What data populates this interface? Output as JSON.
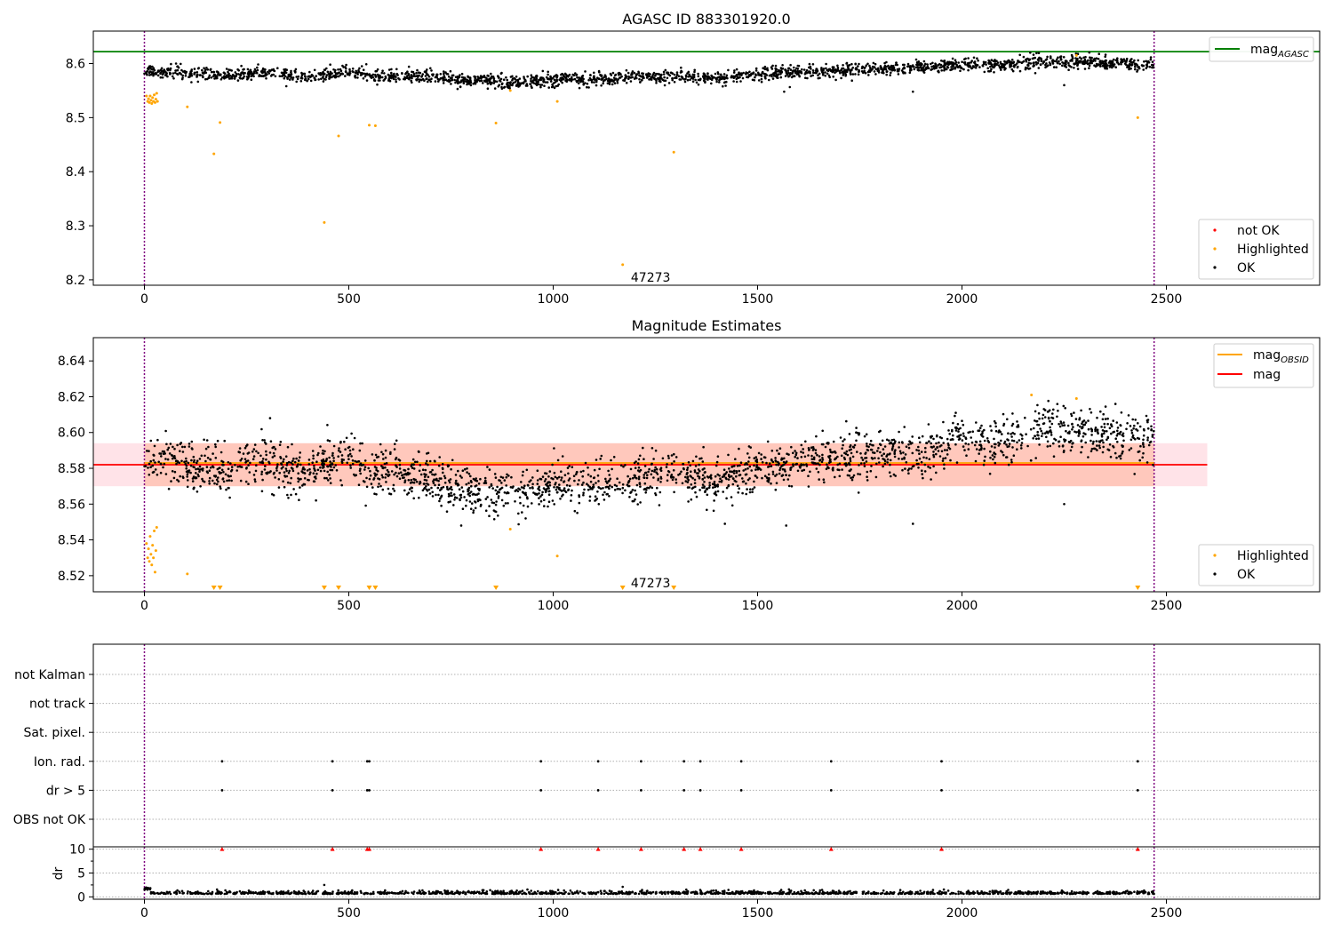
{
  "chart_data": [
    {
      "type": "scatter",
      "title": "AGASC ID 883301920.0",
      "xlim": [
        -125,
        2875
      ],
      "ylim": [
        8.19,
        8.66
      ],
      "xticks": [
        "0",
        "500",
        "1000",
        "1500",
        "2000",
        "2500"
      ],
      "xtick_values": [
        0,
        500,
        1000,
        1500,
        2000,
        2500
      ],
      "yticks": [
        "8.2",
        "8.3",
        "8.4",
        "8.5",
        "8.6"
      ],
      "ytick_values": [
        8.2,
        8.3,
        8.4,
        8.5,
        8.6
      ],
      "vlines": [
        0,
        2470
      ],
      "hline": {
        "label": "mag",
        "sub": "AGASC",
        "value": 8.622,
        "color": "#008000"
      },
      "legend_top": [
        {
          "label": "mag",
          "sub": "AGASC",
          "color": "#008000",
          "kind": "line"
        }
      ],
      "legend_bottom": [
        {
          "label": "not OK",
          "color": "#ff0000",
          "kind": "dot"
        },
        {
          "label": "Highlighted",
          "color": "#ffa500",
          "kind": "dot"
        },
        {
          "label": "OK",
          "color": "#000000",
          "kind": "dot"
        }
      ],
      "annotation": {
        "text": "47273",
        "x": 1190,
        "y": 8.205
      },
      "ok_trend": [
        [
          0,
          8.585
        ],
        [
          100,
          8.582
        ],
        [
          200,
          8.578
        ],
        [
          300,
          8.583
        ],
        [
          350,
          8.579
        ],
        [
          400,
          8.575
        ],
        [
          500,
          8.585
        ],
        [
          550,
          8.578
        ],
        [
          700,
          8.576
        ],
        [
          800,
          8.568
        ],
        [
          900,
          8.566
        ],
        [
          1000,
          8.57
        ],
        [
          1100,
          8.572
        ],
        [
          1200,
          8.574
        ],
        [
          1300,
          8.578
        ],
        [
          1400,
          8.572
        ],
        [
          1500,
          8.58
        ],
        [
          1600,
          8.584
        ],
        [
          1700,
          8.586
        ],
        [
          1800,
          8.59
        ],
        [
          2000,
          8.598
        ],
        [
          2100,
          8.596
        ],
        [
          2200,
          8.604
        ],
        [
          2300,
          8.602
        ],
        [
          2400,
          8.6
        ],
        [
          2470,
          8.598
        ]
      ],
      "highlighted": [
        [
          5,
          8.54
        ],
        [
          8,
          8.53
        ],
        [
          10,
          8.535
        ],
        [
          12,
          8.528
        ],
        [
          14,
          8.54
        ],
        [
          16,
          8.532
        ],
        [
          18,
          8.526
        ],
        [
          20,
          8.537
        ],
        [
          22,
          8.53
        ],
        [
          24,
          8.542
        ],
        [
          26,
          8.528
        ],
        [
          28,
          8.534
        ],
        [
          30,
          8.545
        ],
        [
          32,
          8.53
        ],
        [
          105,
          8.52
        ],
        [
          170,
          8.433
        ],
        [
          185,
          8.491
        ],
        [
          440,
          8.306
        ],
        [
          475,
          8.466
        ],
        [
          550,
          8.486
        ],
        [
          565,
          8.485
        ],
        [
          860,
          8.49
        ],
        [
          895,
          8.55
        ],
        [
          1010,
          8.53
        ],
        [
          1170,
          8.228
        ],
        [
          1295,
          8.436
        ],
        [
          2430,
          8.5
        ],
        [
          2280,
          8.615
        ]
      ],
      "ok_outliers": [
        [
          1565,
          8.548
        ],
        [
          1880,
          8.548
        ],
        [
          2250,
          8.56
        ]
      ]
    },
    {
      "type": "scatter",
      "title": "Magnitude Estimates",
      "xlim": [
        -125,
        2875
      ],
      "ylim": [
        8.511,
        8.653
      ],
      "xticks": [
        "0",
        "500",
        "1000",
        "1500",
        "2000",
        "2500"
      ],
      "xtick_values": [
        0,
        500,
        1000,
        1500,
        2000,
        2500
      ],
      "yticks": [
        "8.52",
        "8.54",
        "8.56",
        "8.58",
        "8.60",
        "8.62",
        "8.64"
      ],
      "ytick_values": [
        8.52,
        8.54,
        8.56,
        8.58,
        8.6,
        8.62,
        8.64
      ],
      "vlines": [
        0,
        2470
      ],
      "mag_line": {
        "value": 8.582,
        "color": "#ff0000"
      },
      "mag_obsid_line": {
        "value": 8.583,
        "color": "#ffa500"
      },
      "pink_band": {
        "x": [
          -125,
          2600
        ],
        "y": [
          8.57,
          8.594
        ],
        "color": "#ffc0cb"
      },
      "orange_band": {
        "x": [
          0,
          2470
        ],
        "y": [
          8.57,
          8.594
        ],
        "color": "#ffa07a"
      },
      "legend_top": [
        {
          "label": "mag",
          "sub": "OBSID",
          "color": "#ffa500",
          "kind": "line"
        },
        {
          "label": "mag",
          "sub": "",
          "color": "#ff0000",
          "kind": "line"
        }
      ],
      "legend_bottom": [
        {
          "label": "Highlighted",
          "color": "#ffa500",
          "kind": "dot"
        },
        {
          "label": "OK",
          "color": "#000000",
          "kind": "dot"
        }
      ],
      "annotation": {
        "text": "47273",
        "x": 1190,
        "y": 8.516
      },
      "ok_trend": [
        [
          0,
          8.585
        ],
        [
          100,
          8.582
        ],
        [
          200,
          8.578
        ],
        [
          300,
          8.585
        ],
        [
          350,
          8.582
        ],
        [
          400,
          8.575
        ],
        [
          500,
          8.588
        ],
        [
          550,
          8.578
        ],
        [
          700,
          8.575
        ],
        [
          800,
          8.566
        ],
        [
          900,
          8.566
        ],
        [
          1000,
          8.57
        ],
        [
          1100,
          8.572
        ],
        [
          1200,
          8.574
        ],
        [
          1300,
          8.579
        ],
        [
          1400,
          8.572
        ],
        [
          1500,
          8.58
        ],
        [
          1600,
          8.584
        ],
        [
          1700,
          8.586
        ],
        [
          1800,
          8.59
        ],
        [
          1900,
          8.587
        ],
        [
          2000,
          8.598
        ],
        [
          2100,
          8.594
        ],
        [
          2200,
          8.603
        ],
        [
          2300,
          8.6
        ],
        [
          2400,
          8.597
        ],
        [
          2470,
          8.596
        ]
      ],
      "highlighted": [
        [
          5,
          8.538
        ],
        [
          8,
          8.53
        ],
        [
          10,
          8.535
        ],
        [
          12,
          8.528
        ],
        [
          14,
          8.542
        ],
        [
          16,
          8.532
        ],
        [
          18,
          8.526
        ],
        [
          20,
          8.537
        ],
        [
          22,
          8.53
        ],
        [
          24,
          8.545
        ],
        [
          26,
          8.522
        ],
        [
          28,
          8.534
        ],
        [
          30,
          8.547
        ],
        [
          105,
          8.521
        ],
        [
          895,
          8.546
        ],
        [
          1010,
          8.531
        ],
        [
          2170,
          8.621
        ],
        [
          2280,
          8.619
        ]
      ],
      "lower_limit_markers": [
        170,
        185,
        440,
        475,
        550,
        565,
        860,
        1170,
        1295,
        2430
      ],
      "ok_outliers": [
        [
          775,
          8.548
        ],
        [
          1570,
          8.548
        ],
        [
          1880,
          8.549
        ],
        [
          2250,
          8.56
        ],
        [
          1200,
          8.575
        ],
        [
          1420,
          8.549
        ]
      ]
    },
    {
      "type": "scatter",
      "title": "",
      "xlim": [
        -125,
        2875
      ],
      "xticks": [
        "0",
        "500",
        "1000",
        "1500",
        "2000",
        "2500"
      ],
      "xtick_values": [
        0,
        500,
        1000,
        1500,
        2000,
        2500
      ],
      "vlines": [
        0,
        2470
      ],
      "flag_rows": [
        "not Kalman",
        "not track",
        "Sat. pixel.",
        "Ion. rad.",
        "dr > 5",
        "OBS not OK"
      ],
      "flag_events": {
        "Ion. rad.": [
          190,
          460,
          545,
          550,
          970,
          1110,
          1215,
          1320,
          1360,
          1460,
          1680,
          1950,
          2430
        ],
        "dr > 5": [
          190,
          460,
          545,
          550,
          970,
          1110,
          1215,
          1320,
          1360,
          1460,
          1680,
          1950,
          2430
        ]
      },
      "dr_panel": {
        "ylabel": "dr",
        "ylim": [
          -0.5,
          10.5
        ],
        "yticks": [
          "0",
          "5",
          "10"
        ],
        "ytick_values": [
          0,
          5,
          10
        ],
        "clipped_at": 10,
        "clipped_events": [
          190,
          460,
          545,
          550,
          970,
          1110,
          1215,
          1320,
          1360,
          1460,
          1680,
          1950,
          2430
        ],
        "spikes": [
          [
            440,
            2.5
          ],
          [
            1170,
            2.1
          ]
        ],
        "baseline": 0.6
      }
    }
  ]
}
